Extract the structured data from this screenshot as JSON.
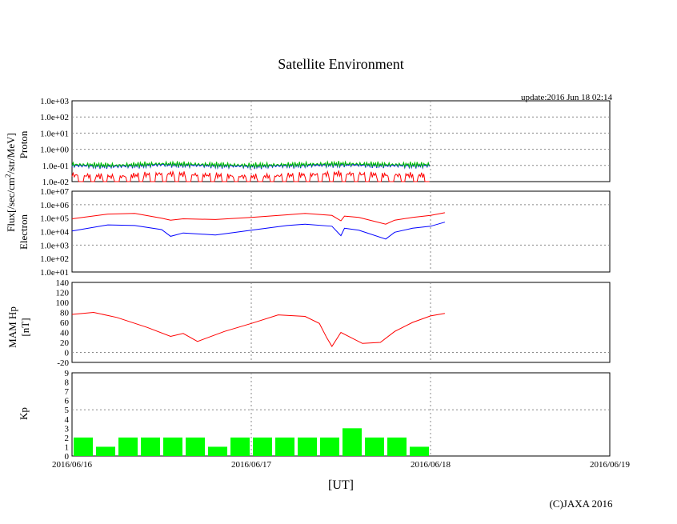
{
  "chart_data": [
    {
      "type": "line",
      "panel": "proton",
      "title": "Satellite Environment",
      "update": "update:2016 Jun 18 02:14",
      "ylabel": "Proton",
      "yscale": "log",
      "ylim_exp": [
        -2,
        3
      ],
      "ytick_labels": [
        "1.0e-02",
        "1.0e-01",
        "1.0e+00",
        "1.0e+01",
        "1.0e+02",
        "1.0e+03"
      ],
      "x_days": [
        0,
        0.25,
        0.5,
        0.75,
        1.0,
        1.25,
        1.5,
        1.75,
        2.0
      ],
      "series": [
        {
          "name": "proton-ch1",
          "color": "#0000ff",
          "values_exp": [
            -1.0,
            -1.05,
            -0.95,
            -1.0,
            -1.05,
            -1.0,
            -0.95,
            -1.0,
            -1.0
          ]
        },
        {
          "name": "proton-ch2",
          "color": "#00c000",
          "values_exp": [
            -0.95,
            -1.0,
            -0.9,
            -0.95,
            -1.0,
            -0.95,
            -0.9,
            -0.95,
            -0.95
          ]
        },
        {
          "name": "proton-ch3",
          "color": "#ff0000",
          "values_exp": [
            -1.6,
            -1.7,
            -1.5,
            -1.6,
            -1.7,
            -1.6,
            -1.5,
            -1.6,
            -1.6
          ]
        }
      ]
    },
    {
      "type": "line",
      "panel": "electron",
      "ylabel": "Electron",
      "yscale": "log",
      "ylim_exp": [
        1,
        7
      ],
      "ytick_labels": [
        "1.0e+01",
        "1.0e+02",
        "1.0e+03",
        "1.0e+04",
        "1.0e+05",
        "1.0e+06",
        "1.0e+07"
      ],
      "x_days": [
        0,
        0.2,
        0.35,
        0.5,
        0.55,
        0.62,
        0.8,
        1.0,
        1.2,
        1.3,
        1.45,
        1.5,
        1.52,
        1.6,
        1.75,
        1.8,
        1.9,
        2.0,
        2.08
      ],
      "series": [
        {
          "name": "electron-high",
          "color": "#ff0000",
          "values_exp": [
            4.95,
            5.3,
            5.35,
            5.0,
            4.85,
            4.95,
            4.9,
            5.05,
            5.25,
            5.35,
            5.2,
            4.8,
            5.15,
            5.05,
            4.55,
            4.85,
            5.05,
            5.2,
            5.4
          ]
        },
        {
          "name": "electron-low",
          "color": "#0000ff",
          "values_exp": [
            4.05,
            4.5,
            4.45,
            4.15,
            3.65,
            3.9,
            3.75,
            4.1,
            4.45,
            4.55,
            4.4,
            3.7,
            4.25,
            4.1,
            3.45,
            3.95,
            4.25,
            4.4,
            4.7
          ]
        }
      ]
    },
    {
      "type": "line",
      "panel": "mam-hp",
      "ylabel": "MAM Hp",
      "ylabel2": "[nT]",
      "ylim": [
        -20,
        140
      ],
      "yticks": [
        -20,
        0,
        20,
        40,
        60,
        80,
        100,
        120,
        140
      ],
      "x_days": [
        0,
        0.12,
        0.25,
        0.42,
        0.55,
        0.62,
        0.7,
        0.85,
        1.0,
        1.15,
        1.3,
        1.38,
        1.42,
        1.45,
        1.5,
        1.62,
        1.72,
        1.8,
        1.9,
        2.0,
        2.08
      ],
      "series": [
        {
          "name": "mam-hp",
          "color": "#ff0000",
          "values": [
            76,
            80,
            70,
            50,
            32,
            38,
            22,
            42,
            58,
            75,
            72,
            58,
            30,
            12,
            40,
            18,
            20,
            42,
            60,
            73,
            78
          ]
        }
      ]
    },
    {
      "type": "bar",
      "panel": "kp",
      "ylabel": "Kp",
      "xlabel": "[UT]",
      "ylim": [
        0,
        9
      ],
      "yticks": [
        0,
        1,
        2,
        3,
        4,
        5,
        6,
        7,
        8,
        9
      ],
      "bar_color": "#00ff00",
      "bar_width_days": 0.125,
      "values": [
        2,
        1,
        2,
        2,
        2,
        2,
        1,
        2,
        2,
        2,
        2,
        2,
        3,
        2,
        2,
        1
      ],
      "xlim_days": [
        0,
        3
      ],
      "xtick_labels": [
        "2016/06/16",
        "2016/06/17",
        "2016/06/18",
        "2016/06/19"
      ]
    }
  ],
  "flux_label": "Flux[/sec/cm",
  "flux_label_sup": "2",
  "flux_label_end": "/str/MeV]",
  "copyright": "(C)JAXA 2016"
}
